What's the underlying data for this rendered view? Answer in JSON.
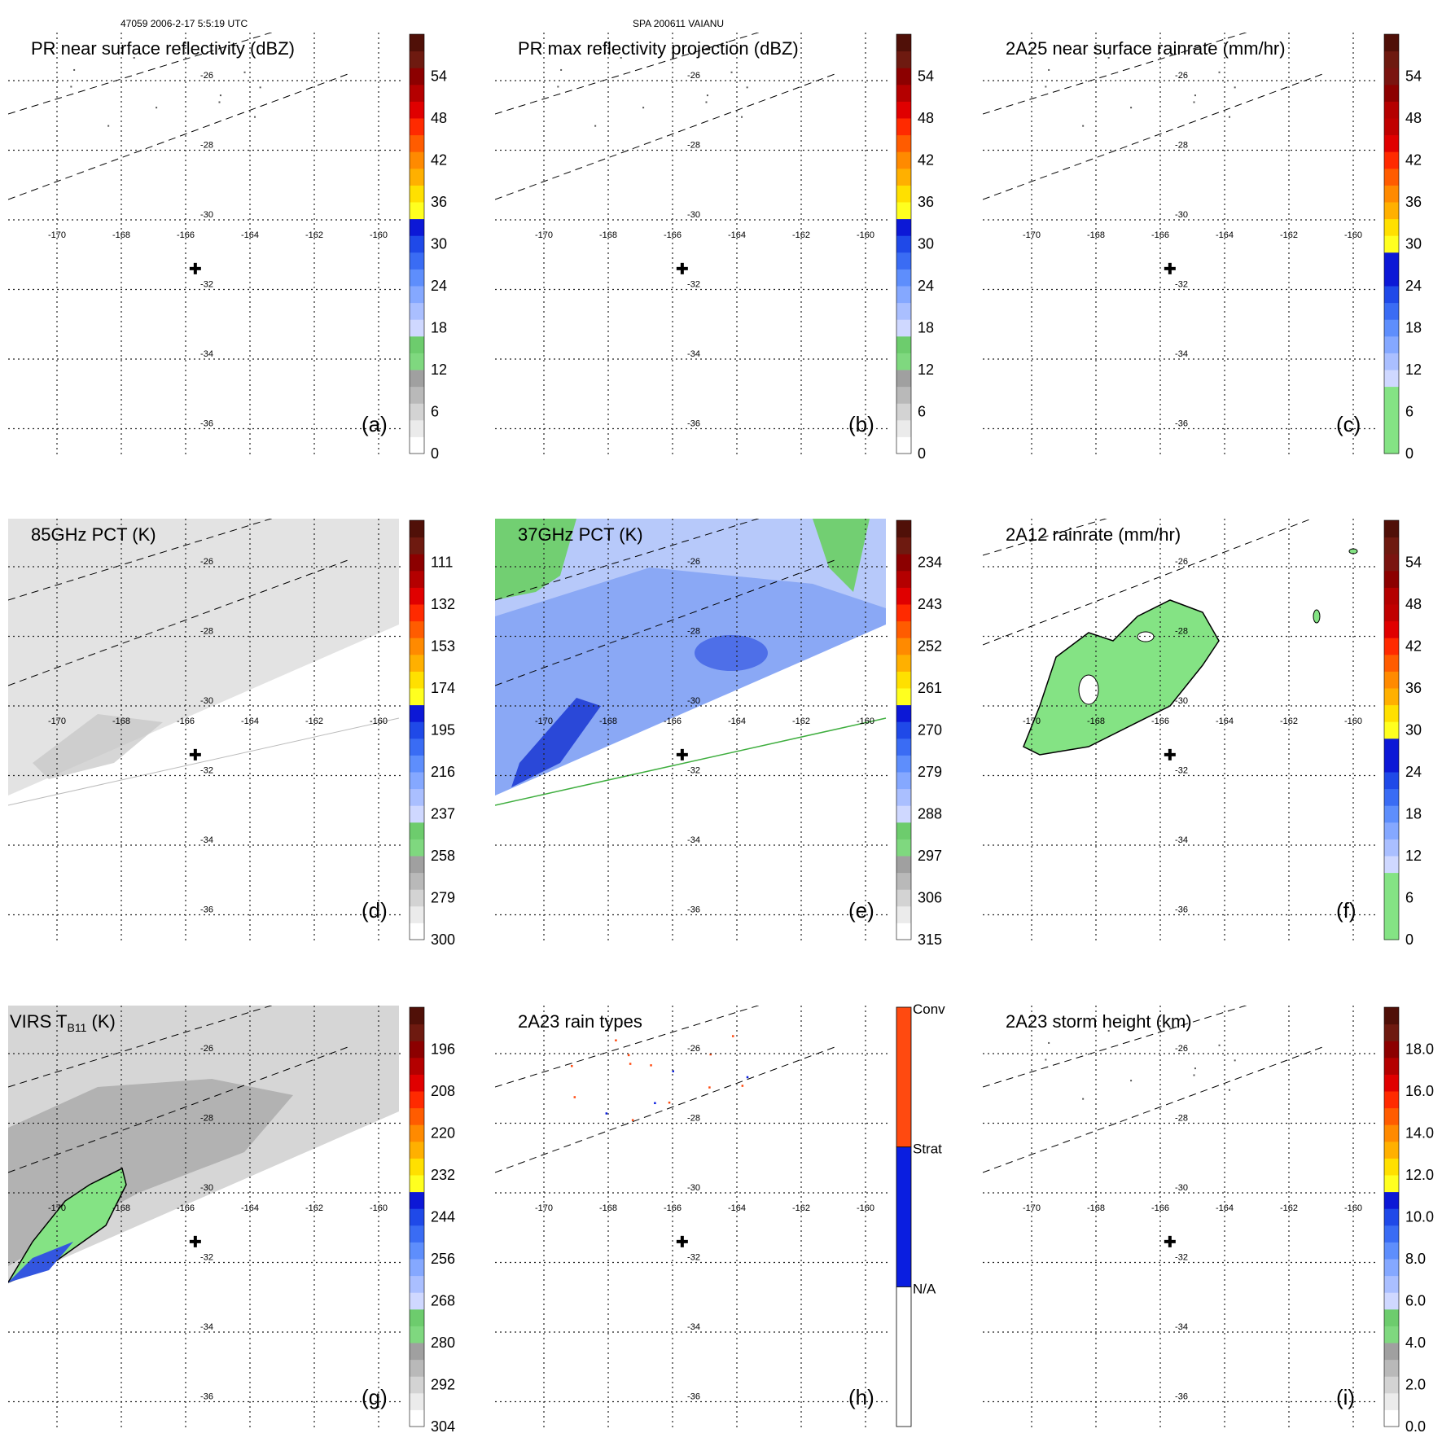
{
  "header": {
    "orbit_time": "47059 2006-2-17 5:5:19 UTC",
    "storm_id": "SPA 200611 VAIANU"
  },
  "chart_data": [
    {
      "type": "heatmap",
      "letter": "(a)",
      "title": "PR near surface reflectivity (dBZ)",
      "lon_ticks": [
        "-170",
        "-168",
        "-166",
        "-164",
        "-162",
        "-160"
      ],
      "lat_ticks": [
        "-26",
        "-28",
        "-30",
        "-32",
        "-34",
        "-36"
      ],
      "colorbar": {
        "ticks": [
          "0",
          "6",
          "12",
          "18",
          "24",
          "30",
          "36",
          "42",
          "48",
          "54"
        ],
        "range": [
          0,
          60
        ]
      },
      "swath": "pr"
    },
    {
      "type": "heatmap",
      "letter": "(b)",
      "title": "PR max reflectivity projection (dBZ)",
      "lon_ticks": [
        "-170",
        "-168",
        "-166",
        "-164",
        "-162",
        "-160"
      ],
      "lat_ticks": [
        "-26",
        "-28",
        "-30",
        "-32",
        "-34",
        "-36"
      ],
      "colorbar": {
        "ticks": [
          "0",
          "6",
          "12",
          "18",
          "24",
          "30",
          "36",
          "42",
          "48",
          "54"
        ],
        "range": [
          0,
          60
        ]
      },
      "swath": "pr"
    },
    {
      "type": "heatmap",
      "letter": "(c)",
      "title": "2A25 near surface rainrate (mm/hr)",
      "lon_ticks": [
        "-170",
        "-168",
        "-166",
        "-164",
        "-162",
        "-160"
      ],
      "lat_ticks": [
        "-26",
        "-28",
        "-30",
        "-32",
        "-34",
        "-36"
      ],
      "colorbar": {
        "ticks": [
          "0",
          "6",
          "12",
          "18",
          "24",
          "30",
          "36",
          "42",
          "48",
          "54"
        ],
        "range": [
          0,
          60
        ]
      },
      "swath": "pr"
    },
    {
      "type": "heatmap",
      "letter": "(d)",
      "title": "85GHz PCT (K)",
      "lon_ticks": [
        "-170",
        "-168",
        "-166",
        "-164",
        "-162",
        "-160"
      ],
      "lat_ticks": [
        "-26",
        "-28",
        "-30",
        "-32",
        "-34",
        "-36"
      ],
      "colorbar": {
        "ticks": [
          "300",
          "279",
          "258",
          "237",
          "216",
          "195",
          "174",
          "153",
          "132",
          "111"
        ],
        "range": [
          300,
          90
        ]
      },
      "swath": "tmi_gray"
    },
    {
      "type": "heatmap",
      "letter": "(e)",
      "title": "37GHz PCT (K)",
      "lon_ticks": [
        "-170",
        "-168",
        "-166",
        "-164",
        "-162",
        "-160"
      ],
      "lat_ticks": [
        "-26",
        "-28",
        "-30",
        "-32",
        "-34",
        "-36"
      ],
      "colorbar": {
        "ticks": [
          "315",
          "306",
          "297",
          "288",
          "279",
          "270",
          "261",
          "252",
          "243",
          "234"
        ],
        "range": [
          315,
          225
        ]
      },
      "swath": "tmi_blue"
    },
    {
      "type": "heatmap",
      "letter": "(f)",
      "title": "2A12 rainrate (mm/hr)",
      "lon_ticks": [
        "-170",
        "-168",
        "-166",
        "-164",
        "-162",
        "-160"
      ],
      "lat_ticks": [
        "-26",
        "-28",
        "-30",
        "-32",
        "-34",
        "-36"
      ],
      "colorbar": {
        "ticks": [
          "0",
          "6",
          "12",
          "18",
          "24",
          "30",
          "36",
          "42",
          "48",
          "54"
        ],
        "range": [
          0,
          60
        ]
      },
      "swath": "tmi_rain"
    },
    {
      "type": "heatmap",
      "letter": "(g)",
      "title_main": "VIRS T",
      "title_sub": "B11",
      "title_end": " (K)",
      "lon_ticks": [
        "-170",
        "-168",
        "-166",
        "-164",
        "-162",
        "-160"
      ],
      "lat_ticks": [
        "-26",
        "-28",
        "-30",
        "-32",
        "-34",
        "-36"
      ],
      "colorbar": {
        "ticks": [
          "304",
          "292",
          "280",
          "268",
          "256",
          "244",
          "232",
          "220",
          "208",
          "196"
        ],
        "range": [
          304,
          184
        ]
      },
      "swath": "virs"
    },
    {
      "type": "heatmap",
      "letter": "(h)",
      "title": "2A23 rain types",
      "lon_ticks": [
        "-170",
        "-168",
        "-166",
        "-164",
        "-162",
        "-160"
      ],
      "lat_ticks": [
        "-26",
        "-28",
        "-30",
        "-32",
        "-34",
        "-36"
      ],
      "colorbar": {
        "categories": [
          "N/A",
          "Strat",
          "Conv"
        ]
      },
      "swath": "raintype"
    },
    {
      "type": "heatmap",
      "letter": "(i)",
      "title": "2A23 storm height (km)",
      "lon_ticks": [
        "-170",
        "-168",
        "-166",
        "-164",
        "-162",
        "-160"
      ],
      "lat_ticks": [
        "-26",
        "-28",
        "-30",
        "-32",
        "-34",
        "-36"
      ],
      "colorbar": {
        "ticks": [
          "0.0",
          "2.0",
          "4.0",
          "6.0",
          "8.0",
          "10.0",
          "12.0",
          "14.0",
          "16.0",
          "18.0"
        ],
        "range": [
          0,
          20
        ]
      },
      "swath": "pr"
    }
  ],
  "colors": {
    "colorbar_scale": [
      "#ffffff",
      "#ebebeb",
      "#d3d3d3",
      "#b9b9b9",
      "#a0a0a0",
      "#7fd87f",
      "#6dcc6d",
      "#cfd8ff",
      "#aabfff",
      "#85a8ff",
      "#5e8efc",
      "#3a6cf4",
      "#1f49e8",
      "#0c18d6",
      "#ffff1f",
      "#ffe000",
      "#ffb000",
      "#ff8a00",
      "#ff5c00",
      "#ff2a00",
      "#e00000",
      "#b40000",
      "#8c0000",
      "#6e1a10",
      "#501008"
    ],
    "rain_green": "#84e384",
    "conv": "#ff4a10",
    "strat": "#0a1ee0"
  }
}
